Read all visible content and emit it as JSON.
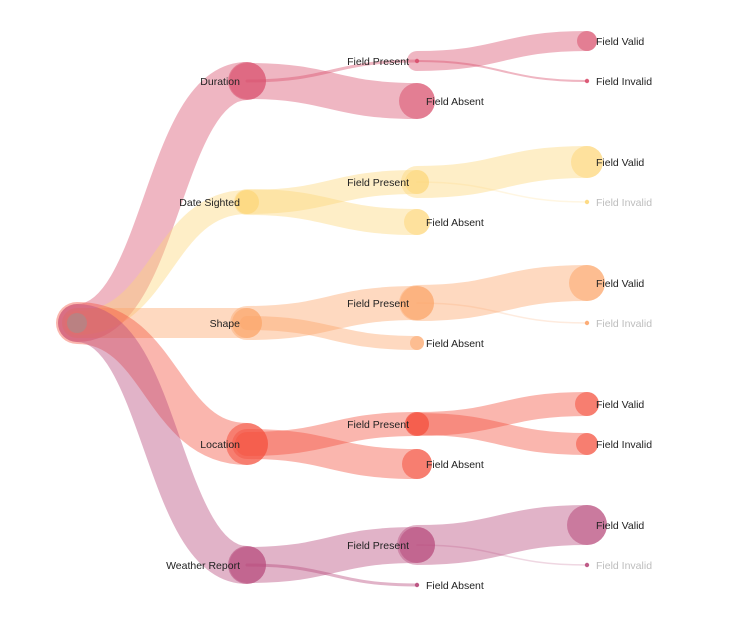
{
  "diagram": {
    "root": {
      "label": "",
      "color": "#9e8f8f"
    },
    "fields": [
      {
        "id": "duration",
        "label": "Duration",
        "color": "#d9506e",
        "weight": 38,
        "children": [
          {
            "id": "duration-present",
            "label": "Field Present",
            "weight": 3,
            "children": [
              {
                "id": "duration-valid",
                "label": "Field Valid",
                "weight": 20,
                "faint": false
              },
              {
                "id": "duration-invalid",
                "label": "Field Invalid",
                "weight": 2,
                "faint": false
              }
            ]
          },
          {
            "id": "duration-absent",
            "label": "Field Absent",
            "weight": 36,
            "children": []
          }
        ]
      },
      {
        "id": "date-sighted",
        "label": "Date Sighted",
        "color": "#fdd77a",
        "weight": 24,
        "children": [
          {
            "id": "date-present",
            "label": "Field Present",
            "weight": 24,
            "children": [
              {
                "id": "date-valid",
                "label": "Field Valid",
                "weight": 32,
                "faint": false
              },
              {
                "id": "date-invalid",
                "label": "Field Invalid",
                "weight": 1,
                "faint": true
              }
            ]
          },
          {
            "id": "date-absent",
            "label": "Field Absent",
            "weight": 26,
            "children": []
          }
        ]
      },
      {
        "id": "shape",
        "label": "Shape",
        "color": "#fca56a",
        "weight": 30,
        "children": [
          {
            "id": "shape-present",
            "label": "Field Present",
            "weight": 34,
            "children": [
              {
                "id": "shape-valid",
                "label": "Field Valid",
                "weight": 36,
                "faint": false
              },
              {
                "id": "shape-invalid",
                "label": "Field Invalid",
                "weight": 1,
                "faint": true
              }
            ]
          },
          {
            "id": "shape-absent",
            "label": "Field Absent",
            "weight": 14,
            "children": []
          }
        ]
      },
      {
        "id": "location",
        "label": "Location",
        "color": "#f4503e",
        "weight": 42,
        "children": [
          {
            "id": "location-present",
            "label": "Field Present",
            "weight": 24,
            "children": [
              {
                "id": "location-valid",
                "label": "Field Valid",
                "weight": 24,
                "faint": false
              },
              {
                "id": "location-invalid",
                "label": "Field Invalid",
                "weight": 22,
                "faint": false
              }
            ]
          },
          {
            "id": "location-absent",
            "label": "Field Absent",
            "weight": 30,
            "children": []
          }
        ]
      },
      {
        "id": "weather-report",
        "label": "Weather Report",
        "color": "#b84b7c",
        "weight": 38,
        "children": [
          {
            "id": "weather-present",
            "label": "Field Present",
            "weight": 36,
            "children": [
              {
                "id": "weather-valid",
                "label": "Field Valid",
                "weight": 40,
                "faint": false
              },
              {
                "id": "weather-invalid",
                "label": "Field Invalid",
                "weight": 1,
                "faint": true
              }
            ]
          },
          {
            "id": "weather-absent",
            "label": "Field Absent",
            "weight": 3,
            "children": []
          }
        ]
      }
    ]
  }
}
